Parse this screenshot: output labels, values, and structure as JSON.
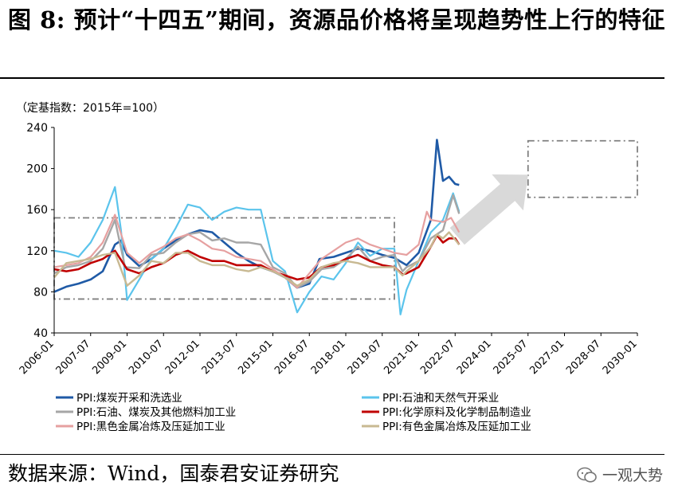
{
  "header": {
    "title": "图 8: 预计“十四五”期间，资源品价格将呈现趋势性上行的特征"
  },
  "footer": {
    "source": "数据来源：Wind，国泰君安证券研究",
    "watermark": "一观大势",
    "watermark_icon": "wechat-icon"
  },
  "chart_data": {
    "type": "line",
    "unit_note": "（定基指数：2015年=100）",
    "ylim": [
      40,
      240
    ],
    "yticks": [
      40,
      80,
      120,
      160,
      200,
      240
    ],
    "xlim": [
      "2006-01",
      "2030-01"
    ],
    "xticks": [
      "2006-01",
      "2007-07",
      "2009-01",
      "2010-07",
      "2012-01",
      "2013-07",
      "2015-01",
      "2016-07",
      "2018-01",
      "2019-07",
      "2021-01",
      "2022-07",
      "2024-01",
      "2025-07",
      "2027-01",
      "2028-07",
      "2030-01"
    ],
    "grid": false,
    "legend_position": "bottom",
    "series": [
      {
        "name": "PPI:煤炭开采和洗选业",
        "color": "#1f5aa6",
        "width": 2.6,
        "points": [
          [
            "2006-01",
            80
          ],
          [
            "2006-07",
            85
          ],
          [
            "2007-01",
            88
          ],
          [
            "2007-07",
            92
          ],
          [
            "2008-01",
            100
          ],
          [
            "2008-07",
            126
          ],
          [
            "2008-10",
            130
          ],
          [
            "2009-01",
            116
          ],
          [
            "2009-07",
            105
          ],
          [
            "2010-01",
            112
          ],
          [
            "2010-07",
            122
          ],
          [
            "2011-01",
            130
          ],
          [
            "2011-07",
            136
          ],
          [
            "2012-01",
            140
          ],
          [
            "2012-07",
            138
          ],
          [
            "2013-01",
            128
          ],
          [
            "2013-07",
            118
          ],
          [
            "2014-01",
            110
          ],
          [
            "2014-07",
            104
          ],
          [
            "2015-01",
            100
          ],
          [
            "2015-07",
            94
          ],
          [
            "2016-01",
            84
          ],
          [
            "2016-07",
            88
          ],
          [
            "2016-12",
            112
          ],
          [
            "2017-07",
            114
          ],
          [
            "2018-01",
            118
          ],
          [
            "2018-07",
            122
          ],
          [
            "2019-01",
            120
          ],
          [
            "2019-07",
            116
          ],
          [
            "2020-01",
            113
          ],
          [
            "2020-07",
            106
          ],
          [
            "2021-01",
            118
          ],
          [
            "2021-07",
            150
          ],
          [
            "2021-10",
            228
          ],
          [
            "2022-01",
            188
          ],
          [
            "2022-04",
            192
          ],
          [
            "2022-07",
            185
          ],
          [
            "2022-09",
            184
          ]
        ]
      },
      {
        "name": "PPI:石油和天然气开采业",
        "color": "#5bc4ec",
        "width": 2.2,
        "points": [
          [
            "2006-01",
            120
          ],
          [
            "2006-07",
            118
          ],
          [
            "2007-01",
            114
          ],
          [
            "2007-07",
            128
          ],
          [
            "2008-01",
            150
          ],
          [
            "2008-07",
            182
          ],
          [
            "2008-10",
            140
          ],
          [
            "2009-01",
            72
          ],
          [
            "2009-07",
            92
          ],
          [
            "2010-01",
            112
          ],
          [
            "2010-07",
            122
          ],
          [
            "2011-01",
            142
          ],
          [
            "2011-07",
            165
          ],
          [
            "2012-01",
            162
          ],
          [
            "2012-07",
            150
          ],
          [
            "2013-01",
            158
          ],
          [
            "2013-07",
            162
          ],
          [
            "2014-01",
            160
          ],
          [
            "2014-07",
            160
          ],
          [
            "2015-01",
            110
          ],
          [
            "2015-07",
            100
          ],
          [
            "2016-01",
            60
          ],
          [
            "2016-07",
            80
          ],
          [
            "2017-01",
            95
          ],
          [
            "2017-07",
            92
          ],
          [
            "2018-01",
            108
          ],
          [
            "2018-07",
            128
          ],
          [
            "2019-01",
            115
          ],
          [
            "2019-07",
            122
          ],
          [
            "2020-01",
            122
          ],
          [
            "2020-04",
            58
          ],
          [
            "2020-07",
            82
          ],
          [
            "2021-01",
            110
          ],
          [
            "2021-07",
            138
          ],
          [
            "2022-01",
            150
          ],
          [
            "2022-06",
            176
          ],
          [
            "2022-09",
            158
          ]
        ]
      },
      {
        "name": "PPI:石油、煤炭及其他燃料加工业",
        "color": "#a6a6a6",
        "width": 2.4,
        "points": [
          [
            "2006-01",
            98
          ],
          [
            "2006-07",
            104
          ],
          [
            "2007-01",
            106
          ],
          [
            "2007-07",
            110
          ],
          [
            "2008-01",
            122
          ],
          [
            "2008-07",
            150
          ],
          [
            "2008-12",
            104
          ],
          [
            "2009-07",
            103
          ],
          [
            "2010-01",
            116
          ],
          [
            "2010-07",
            118
          ],
          [
            "2011-01",
            128
          ],
          [
            "2011-07",
            136
          ],
          [
            "2012-01",
            138
          ],
          [
            "2012-07",
            130
          ],
          [
            "2013-01",
            132
          ],
          [
            "2013-07",
            128
          ],
          [
            "2014-01",
            128
          ],
          [
            "2014-07",
            126
          ],
          [
            "2015-01",
            104
          ],
          [
            "2015-07",
            98
          ],
          [
            "2016-01",
            84
          ],
          [
            "2016-07",
            90
          ],
          [
            "2017-01",
            102
          ],
          [
            "2017-07",
            104
          ],
          [
            "2018-01",
            112
          ],
          [
            "2018-07",
            124
          ],
          [
            "2019-01",
            110
          ],
          [
            "2019-07",
            114
          ],
          [
            "2020-01",
            116
          ],
          [
            "2020-05",
            100
          ],
          [
            "2020-07",
            104
          ],
          [
            "2021-01",
            110
          ],
          [
            "2021-07",
            132
          ],
          [
            "2022-01",
            140
          ],
          [
            "2022-06",
            174
          ],
          [
            "2022-09",
            156
          ]
        ]
      },
      {
        "name": "PPI:化学原料及化学制品制造业",
        "color": "#c00000",
        "width": 2.6,
        "points": [
          [
            "2006-01",
            102
          ],
          [
            "2006-07",
            100
          ],
          [
            "2007-01",
            102
          ],
          [
            "2007-07",
            108
          ],
          [
            "2008-01",
            112
          ],
          [
            "2008-07",
            120
          ],
          [
            "2009-01",
            102
          ],
          [
            "2009-07",
            98
          ],
          [
            "2010-01",
            104
          ],
          [
            "2010-07",
            108
          ],
          [
            "2011-01",
            116
          ],
          [
            "2011-07",
            120
          ],
          [
            "2012-01",
            114
          ],
          [
            "2012-07",
            110
          ],
          [
            "2013-01",
            110
          ],
          [
            "2013-07",
            106
          ],
          [
            "2014-01",
            106
          ],
          [
            "2014-07",
            106
          ],
          [
            "2015-01",
            100
          ],
          [
            "2015-07",
            96
          ],
          [
            "2016-01",
            92
          ],
          [
            "2016-07",
            94
          ],
          [
            "2017-01",
            104
          ],
          [
            "2017-07",
            106
          ],
          [
            "2018-01",
            112
          ],
          [
            "2018-07",
            116
          ],
          [
            "2019-01",
            110
          ],
          [
            "2019-07",
            106
          ],
          [
            "2020-01",
            104
          ],
          [
            "2020-05",
            97
          ],
          [
            "2020-07",
            98
          ],
          [
            "2021-01",
            104
          ],
          [
            "2021-07",
            124
          ],
          [
            "2021-10",
            135
          ],
          [
            "2022-01",
            128
          ],
          [
            "2022-04",
            132
          ],
          [
            "2022-07",
            132
          ],
          [
            "2022-09",
            126
          ]
        ]
      },
      {
        "name": "PPI:黑色金属冶炼及压延加工业",
        "color": "#e6a0a0",
        "width": 2.2,
        "points": [
          [
            "2006-01",
            104
          ],
          [
            "2006-07",
            106
          ],
          [
            "2007-01",
            108
          ],
          [
            "2007-07",
            114
          ],
          [
            "2008-01",
            128
          ],
          [
            "2008-07",
            155
          ],
          [
            "2009-01",
            118
          ],
          [
            "2009-07",
            108
          ],
          [
            "2010-01",
            118
          ],
          [
            "2010-07",
            124
          ],
          [
            "2011-01",
            132
          ],
          [
            "2011-07",
            136
          ],
          [
            "2012-01",
            130
          ],
          [
            "2012-07",
            122
          ],
          [
            "2013-01",
            120
          ],
          [
            "2013-07",
            114
          ],
          [
            "2014-01",
            112
          ],
          [
            "2014-07",
            110
          ],
          [
            "2015-01",
            102
          ],
          [
            "2015-07",
            94
          ],
          [
            "2016-01",
            84
          ],
          [
            "2016-07",
            98
          ],
          [
            "2017-01",
            112
          ],
          [
            "2017-07",
            120
          ],
          [
            "2018-01",
            128
          ],
          [
            "2018-07",
            132
          ],
          [
            "2019-01",
            126
          ],
          [
            "2019-07",
            122
          ],
          [
            "2020-01",
            118
          ],
          [
            "2020-07",
            116
          ],
          [
            "2021-01",
            126
          ],
          [
            "2021-05",
            158
          ],
          [
            "2021-07",
            150
          ],
          [
            "2022-01",
            148
          ],
          [
            "2022-05",
            152
          ],
          [
            "2022-09",
            138
          ]
        ]
      },
      {
        "name": "PPI:有色金属冶炼及压延加工业",
        "color": "#c8b992",
        "width": 2.4,
        "points": [
          [
            "2006-01",
            94
          ],
          [
            "2006-07",
            108
          ],
          [
            "2007-01",
            110
          ],
          [
            "2007-07",
            112
          ],
          [
            "2008-01",
            116
          ],
          [
            "2008-07",
            118
          ],
          [
            "2009-01",
            86
          ],
          [
            "2009-07",
            96
          ],
          [
            "2010-01",
            110
          ],
          [
            "2010-07",
            108
          ],
          [
            "2011-01",
            118
          ],
          [
            "2011-07",
            118
          ],
          [
            "2012-01",
            110
          ],
          [
            "2012-07",
            106
          ],
          [
            "2013-01",
            106
          ],
          [
            "2013-07",
            102
          ],
          [
            "2014-01",
            100
          ],
          [
            "2014-07",
            104
          ],
          [
            "2015-01",
            100
          ],
          [
            "2015-07",
            94
          ],
          [
            "2016-01",
            86
          ],
          [
            "2016-07",
            92
          ],
          [
            "2017-01",
            104
          ],
          [
            "2017-07",
            108
          ],
          [
            "2018-01",
            110
          ],
          [
            "2018-07",
            108
          ],
          [
            "2019-01",
            104
          ],
          [
            "2019-07",
            104
          ],
          [
            "2020-01",
            104
          ],
          [
            "2020-05",
            96
          ],
          [
            "2020-07",
            100
          ],
          [
            "2021-01",
            110
          ],
          [
            "2021-07",
            124
          ],
          [
            "2021-10",
            136
          ],
          [
            "2022-01",
            132
          ],
          [
            "2022-04",
            138
          ],
          [
            "2022-09",
            126
          ]
        ]
      }
    ],
    "annotations": {
      "history_box": {
        "x": [
          "2006-01",
          "2020-01"
        ],
        "y": [
          73,
          152
        ]
      },
      "forecast_box": {
        "x": [
          "2025-07",
          "2030-01"
        ],
        "y": [
          172,
          227
        ]
      },
      "arrow": {
        "from": [
          "2022-08",
          134
        ],
        "to": [
          "2025-07",
          194
        ]
      }
    }
  }
}
